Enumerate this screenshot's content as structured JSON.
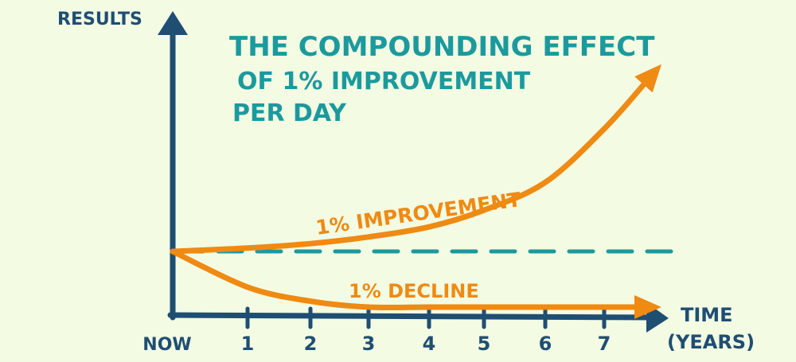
{
  "chart_data": {
    "type": "line",
    "title_lines": [
      "THE COMPOUNDING EFFECT",
      "OF 1% IMPROVEMENT",
      "PER DAY"
    ],
    "xlabel": "TIME",
    "xlabel_unit": "(YEARS)",
    "ylabel": "RESULTS",
    "x_ticks": [
      "NOW",
      "1",
      "2",
      "3",
      "4",
      "5",
      "6",
      "7"
    ],
    "xlim": [
      0,
      8
    ],
    "baseline": 1,
    "series": [
      {
        "name": "1% IMPROVEMENT",
        "color": "#ef8a12",
        "points": [
          [
            0,
            1.0
          ],
          [
            1,
            1.15
          ],
          [
            2,
            1.35
          ],
          [
            3,
            1.65
          ],
          [
            4,
            2.1
          ],
          [
            5,
            2.85
          ],
          [
            6,
            4.1
          ],
          [
            7,
            6.5
          ],
          [
            8,
            9.4
          ]
        ]
      },
      {
        "name": "1% DECLINE",
        "color": "#ef8a12",
        "points": [
          [
            0,
            1.0
          ],
          [
            1,
            0.52
          ],
          [
            2,
            0.33
          ],
          [
            3,
            0.24
          ],
          [
            4,
            0.2
          ],
          [
            5,
            0.18
          ],
          [
            6,
            0.17
          ],
          [
            7,
            0.16
          ],
          [
            8,
            0.16
          ]
        ]
      }
    ],
    "colors": {
      "axis": "#1f4e73",
      "title": "#1b9a9e",
      "baseline": "#1b9a9e",
      "series": "#ef8a12",
      "background": "#f3fbe3"
    }
  }
}
